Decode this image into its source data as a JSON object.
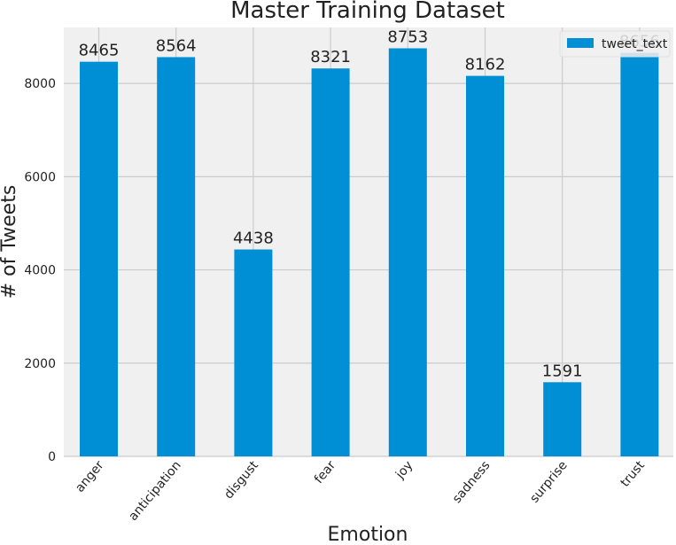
{
  "chart_data": {
    "type": "bar",
    "title": "Master Training Dataset",
    "xlabel": "Emotion",
    "ylabel": "# of Tweets",
    "categories": [
      "anger",
      "anticipation",
      "disgust",
      "fear",
      "joy",
      "sadness",
      "surprise",
      "trust"
    ],
    "series": [
      {
        "name": "tweet_text",
        "values": [
          8465,
          8564,
          4438,
          8321,
          8753,
          8162,
          1591,
          8656
        ]
      }
    ],
    "data_labels": [
      "8465",
      "8564",
      "4438",
      "8321",
      "8753",
      "8162",
      "1591",
      "8656"
    ],
    "yticks": [
      "0",
      "2000",
      "4000",
      "6000",
      "8000"
    ],
    "ylim": [
      0,
      9200
    ],
    "grid": true,
    "legend_position": "top-right",
    "colors": {
      "bar": "#008fd5",
      "background": "#f0f0f0",
      "grid": "#cbcbcb"
    }
  }
}
